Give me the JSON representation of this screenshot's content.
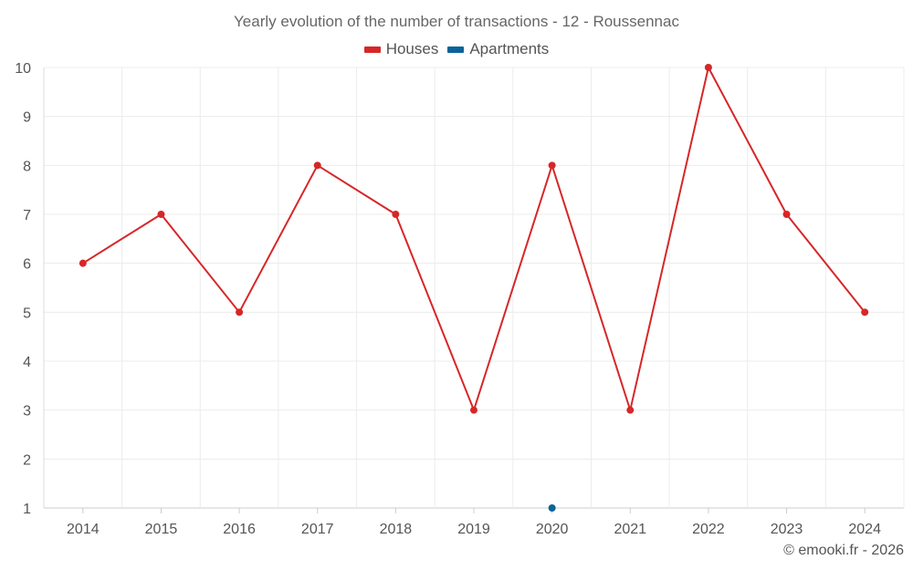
{
  "chart_data": {
    "type": "line",
    "title": "Yearly evolution of the number of transactions - 12 - Roussennac",
    "categories": [
      "2014",
      "2015",
      "2016",
      "2017",
      "2018",
      "2019",
      "2020",
      "2021",
      "2022",
      "2023",
      "2024"
    ],
    "series": [
      {
        "name": "Houses",
        "color": "#d62728",
        "values": [
          6,
          7,
          5,
          8,
          7,
          3,
          8,
          3,
          10,
          7,
          5
        ]
      },
      {
        "name": "Apartments",
        "color": "#0b6399",
        "values": [
          null,
          null,
          null,
          null,
          null,
          null,
          1,
          null,
          null,
          null,
          null
        ]
      }
    ],
    "ylim": [
      1,
      10
    ],
    "yticks": [
      "1",
      "2",
      "3",
      "4",
      "5",
      "6",
      "7",
      "8",
      "9",
      "10"
    ],
    "xlabel": "",
    "ylabel": "",
    "grid": true,
    "legend_position": "top-center"
  },
  "footer": {
    "credit": "© emooki.fr - 2026"
  }
}
